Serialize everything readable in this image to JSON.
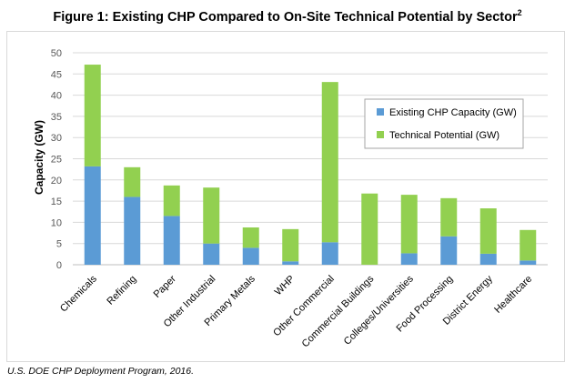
{
  "figure": {
    "title": "Figure 1: Existing CHP Compared to On-Site Technical Potential by Sector",
    "title_superscript": "2",
    "source": "U.S. DOE CHP Deployment Program, 2016."
  },
  "chart_data": {
    "type": "bar",
    "stacked": true,
    "categories": [
      "Chemicals",
      "Refining",
      "Paper",
      "Other Industrial",
      "Primary Metals",
      "WHP",
      "Other Commercial",
      "Commercial Buildings",
      "Colleges/Universities",
      "Food Processing",
      "District Energy",
      "Healthcare"
    ],
    "series": [
      {
        "name": "Existing CHP Capacity (GW)",
        "color": "#5b9bd5",
        "values": [
          23.2,
          16.0,
          11.5,
          5.0,
          4.0,
          0.8,
          5.3,
          0.0,
          2.7,
          6.7,
          2.6,
          1.0
        ]
      },
      {
        "name": "Technical Potential (GW)",
        "color": "#92d050",
        "values": [
          24.0,
          7.0,
          7.2,
          13.2,
          4.8,
          7.6,
          37.8,
          16.8,
          13.8,
          9.0,
          10.7,
          7.2
        ]
      }
    ],
    "ylabel": "Capacity (GW)",
    "xlabel": "",
    "ylim": [
      0,
      50
    ],
    "yticks": [
      0,
      5,
      10,
      15,
      20,
      25,
      30,
      35,
      40,
      45,
      50
    ],
    "grid": true,
    "legend_position": "right"
  }
}
